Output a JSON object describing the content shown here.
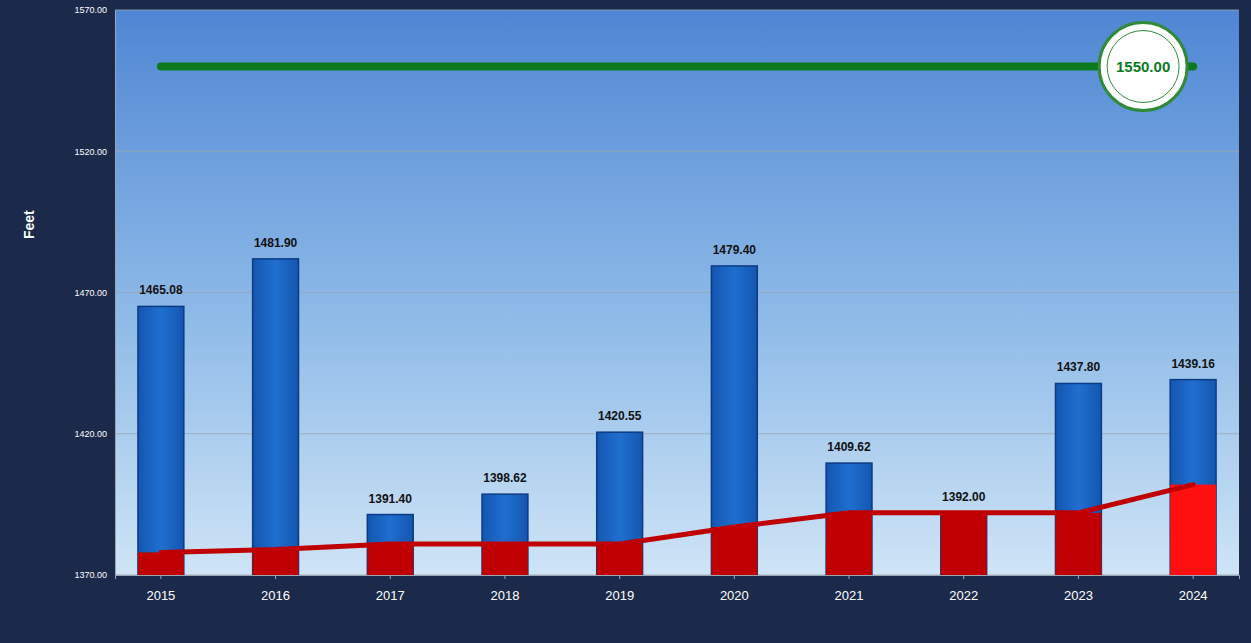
{
  "chart_data": {
    "type": "bar",
    "y_label": "Feet",
    "categories": [
      "2015",
      "2016",
      "2017",
      "2018",
      "2019",
      "2020",
      "2021",
      "2022",
      "2023",
      "2024"
    ],
    "series": [
      {
        "type": "bar",
        "color": "#1f6fd0",
        "values": [
          1465.08,
          1481.9,
          1391.4,
          1398.62,
          1420.55,
          1479.4,
          1409.62,
          1392.0,
          1437.8,
          1439.16
        ],
        "value_labels": [
          "1465.08",
          "1481.90",
          "1391.40",
          "1398.62",
          "1420.55",
          "1479.40",
          "1409.62",
          "1392.00",
          "1437.80",
          "1439.16"
        ],
        "data_labels": true
      },
      {
        "type": "bar",
        "colors": [
          "#c00000",
          "#c00000",
          "#c00000",
          "#c00000",
          "#c00000",
          "#c00000",
          "#c00000",
          "#c00000",
          "#c00000",
          "#ff1010"
        ],
        "values": [
          1378,
          1379,
          1381,
          1381,
          1381,
          1387,
          1392,
          1392,
          1392,
          1402
        ]
      },
      {
        "type": "line",
        "color": "#c00000",
        "line_style": "solid",
        "values": [
          1378,
          1379,
          1381,
          1381,
          1381,
          1387,
          1392,
          1392,
          1392,
          1402
        ]
      },
      {
        "type": "line",
        "color": "#0b7a1e",
        "line_style": "solid",
        "values": [
          1550,
          1550,
          1550,
          1550,
          1550,
          1550,
          1550,
          1550,
          1550,
          1550
        ]
      }
    ],
    "annotations": [
      {
        "text": "1550.00",
        "y": 1550
      }
    ],
    "ylim": [
      1370,
      1570
    ],
    "yticks": [
      {
        "value": 1370,
        "label": "1370.00"
      },
      {
        "value": 1420,
        "label": "1420.00"
      },
      {
        "value": 1470,
        "label": "1470.00"
      },
      {
        "value": 1520,
        "label": "1520.00"
      },
      {
        "value": 1570,
        "label": "1570.00"
      }
    ],
    "stacked": false,
    "grid": true
  }
}
